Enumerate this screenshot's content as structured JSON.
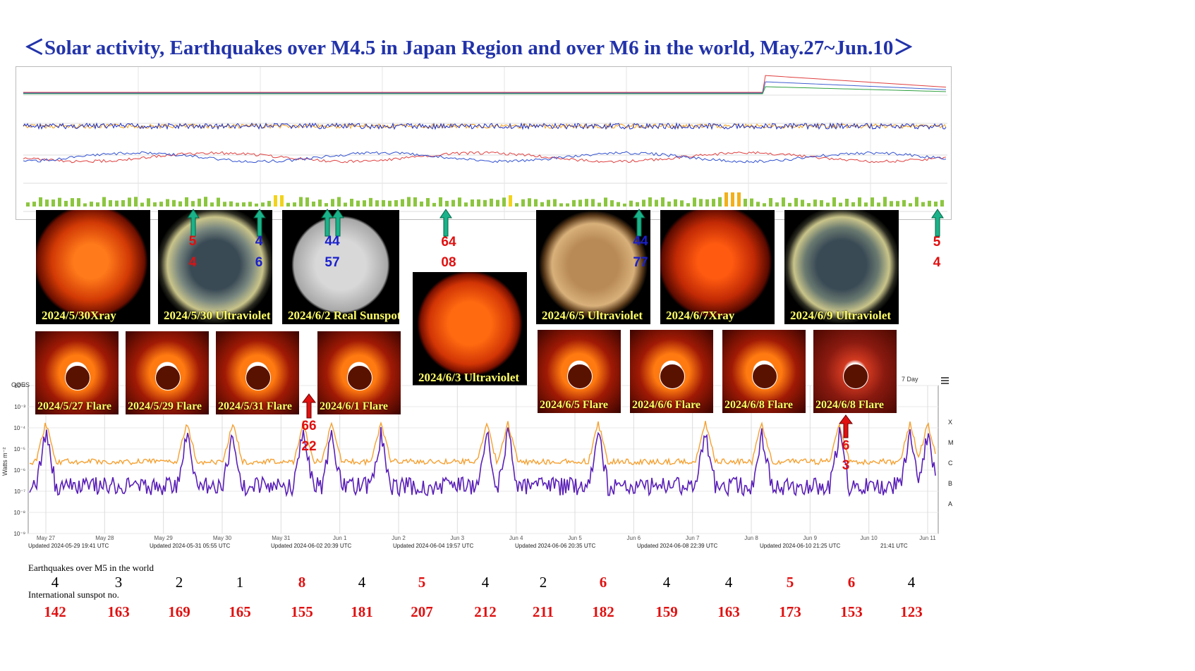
{
  "title": "＜Solar activity, Earthquakes over M4.5 in Japan Region and over M6 in the world, May.27~Jun.10＞",
  "colors": {
    "title": "#2233aa",
    "caption": "#ffff66",
    "red": "#e01010",
    "blue": "#1a20cc",
    "arrow_green": "#1ab28a",
    "goes_orange": "#f5a030",
    "goes_purple": "#5a1fb8"
  },
  "sun_images": [
    {
      "caption": "2024/5/30Xray"
    },
    {
      "caption": "2024/5/30 Ultraviolet"
    },
    {
      "caption": "2024/6/2 Real Sunspot"
    },
    {
      "caption": "2024/6/3 Ultraviolet"
    },
    {
      "caption": "2024/6/5 Ultraviolet"
    },
    {
      "caption": "2024/6/7Xray"
    },
    {
      "caption": "2024/6/9 Ultraviolet"
    }
  ],
  "flare_images": [
    {
      "caption": "2024/5/27 Flare"
    },
    {
      "caption": "2024/5/29 Flare"
    },
    {
      "caption": "2024/5/31 Flare"
    },
    {
      "caption": "2024/6/1 Flare"
    },
    {
      "caption": "2024/6/5 Flare"
    },
    {
      "caption": "2024/6/6 Flare"
    },
    {
      "caption": "2024/6/8 Flare"
    },
    {
      "caption": "2024/6/8 Flare"
    }
  ],
  "magnitudes": [
    {
      "top": "5",
      "bottom": "4",
      "color": "red"
    },
    {
      "top": "4",
      "bottom": "6",
      "color": "blue"
    },
    {
      "top": "44",
      "bottom": "57",
      "color": "blue"
    },
    {
      "top": "64",
      "bottom": "08",
      "color": "red"
    },
    {
      "top": "44",
      "bottom": "77",
      "color": "blue"
    },
    {
      "top": "5",
      "bottom": "4",
      "color": "red"
    },
    {
      "top": "66",
      "bottom": "22",
      "color": "red"
    },
    {
      "top": "6",
      "bottom": "3",
      "color": "red"
    }
  ],
  "goes": {
    "y_label": "Watts m⁻²",
    "y_ticks": [
      "10⁻²",
      "10⁻³",
      "10⁻⁴",
      "10⁻⁵",
      "10⁻⁶",
      "10⁻⁷",
      "10⁻⁸",
      "10⁻⁹"
    ],
    "classes": [
      "X",
      "M",
      "C",
      "B",
      "A"
    ],
    "x_ticks": [
      "May 27",
      "May 28",
      "May 29",
      "May 30",
      "May 31",
      "Jun 1",
      "Jun 2",
      "Jun 3",
      "Jun 4",
      "Jun 5",
      "Jun 6",
      "Jun 7",
      "Jun 8",
      "Jun 9",
      "Jun 10",
      "Jun 11"
    ],
    "updated": [
      "Updated 2024-05-29 19:41 UTC",
      "Updated 2024-05-31 05:55 UTC",
      "Updated 2024-06-02 20:39 UTC",
      "Updated 2024-06-04 19:57 UTC",
      "Updated 2024-06-06 20:35 UTC",
      "Updated 2024-06-08 22:39 UTC",
      "Updated 2024-06-10 21:25 UTC",
      "21:41 UTC"
    ],
    "corner_label": "GOES",
    "period": "7 Day",
    "menu_icon": "hamburger-icon"
  },
  "earthquakes_label": "Earthquakes over M5 in the world",
  "sunspot_label": "International sunspot no.",
  "earthquakes": [
    {
      "v": "4",
      "red": false
    },
    {
      "v": "3",
      "red": false
    },
    {
      "v": "2",
      "red": false
    },
    {
      "v": "1",
      "red": false
    },
    {
      "v": "8",
      "red": true
    },
    {
      "v": "4",
      "red": false
    },
    {
      "v": "5",
      "red": true
    },
    {
      "v": "4",
      "red": false
    },
    {
      "v": "2",
      "red": false
    },
    {
      "v": "6",
      "red": true
    },
    {
      "v": "4",
      "red": false
    },
    {
      "v": "4",
      "red": false
    },
    {
      "v": "5",
      "red": true
    },
    {
      "v": "6",
      "red": true
    },
    {
      "v": "4",
      "red": false
    }
  ],
  "sunspots": [
    "142",
    "163",
    "169",
    "165",
    "155",
    "181",
    "207",
    "212",
    "211",
    "182",
    "159",
    "163",
    "173",
    "153",
    "123"
  ]
}
